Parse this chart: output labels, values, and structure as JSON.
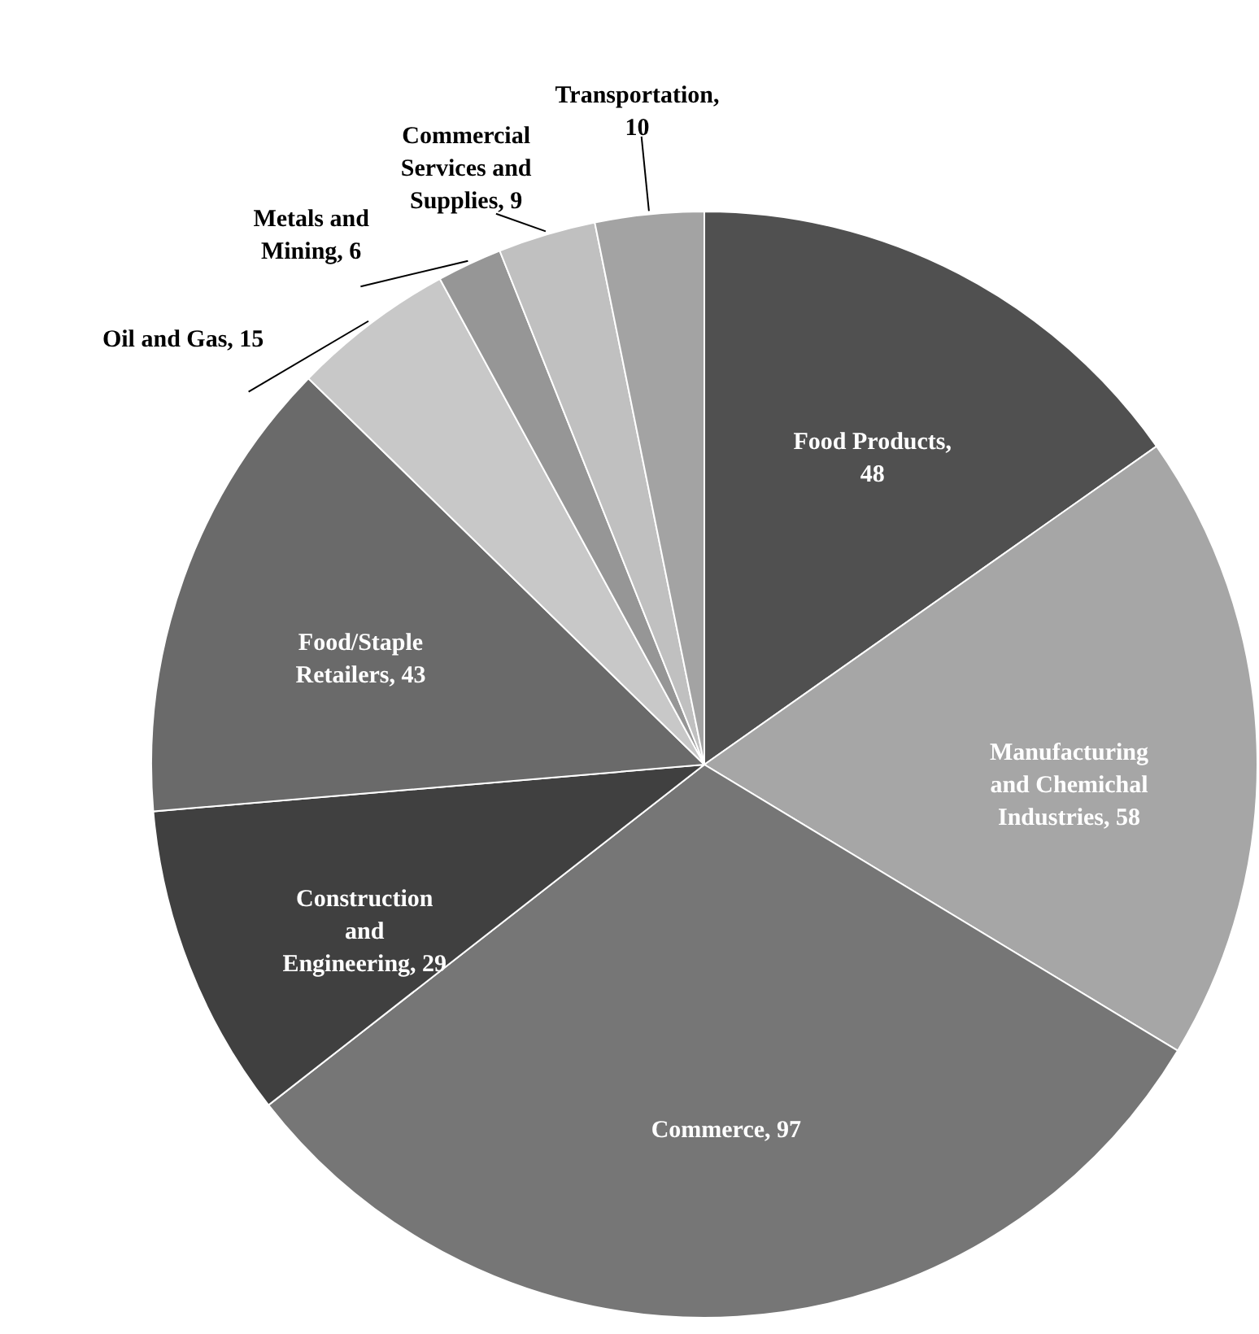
{
  "chart_data": {
    "type": "pie",
    "categories": [
      "Food Products, 48",
      "Manufacturing and Chemichal Industries, 58",
      "Commerce, 97",
      "Construction and Engineering, 29",
      "Food/Staple Retailers, 43",
      "Oil and Gas, 15",
      "Metals and Mining, 6",
      "Commercial Services and Supplies, 9",
      "Transportation, 10"
    ],
    "values": [
      48,
      58,
      97,
      29,
      43,
      15,
      6,
      9,
      10
    ],
    "colors": [
      "#505050",
      "#a6a6a6",
      "#767676",
      "#404040",
      "#6a6a6a",
      "#c8c8c8",
      "#969696",
      "#c0c0c0",
      "#a3a3a3"
    ]
  }
}
